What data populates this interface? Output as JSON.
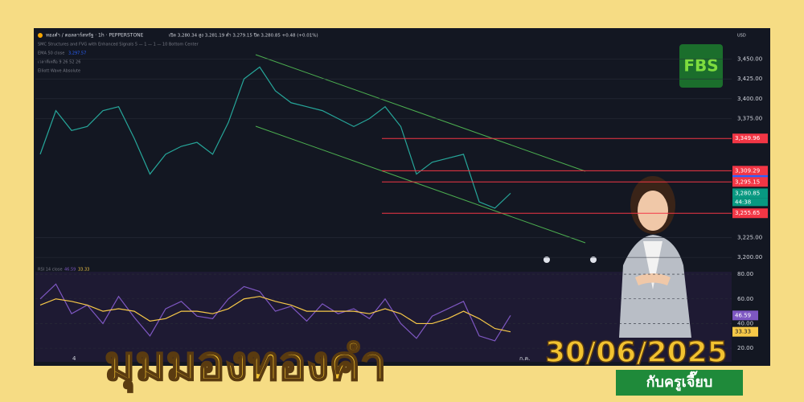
{
  "header": {
    "symbol": "ทองคำ / ดอลลาร์สหรัฐ · 1h · PEPPERSTONE",
    "ohlc": "เปิด 3,280.34 สูง 3,281.19 ต่ำ 3,279.15 ปิด 3,280.85 +0.48 (+0.01%)",
    "indicators": [
      "SMC Structures and FVG with Enhanced Signals 5 — 1 — 1 — 10 Bottom Center",
      "EMA 50 close",
      "เวลาที่เหลือ 9 26 52 26",
      "Elliott Wave Absolute"
    ],
    "currency": "USD",
    "time_labels": [
      "4",
      "ก.ค."
    ]
  },
  "brand": "FBS",
  "title": "มุมมองทองคำ",
  "date": "30/06/2025",
  "presenter": "กับครูเจี๊ยบ",
  "chart_data": [
    {
      "type": "line",
      "values": [
        3330,
        3385,
        3360,
        3365,
        3385,
        3390,
        3350,
        3305,
        3330,
        3340,
        3345,
        3330,
        3370,
        3425,
        3440,
        3410,
        3395,
        3390,
        3385,
        3375,
        3365,
        3375,
        3390,
        3365,
        3305,
        3320,
        3325,
        3330,
        3270,
        3262,
        3280.85
      ],
      "color": "#26a69a",
      "ylim": [
        3190,
        3487
      ],
      "yticks": [
        {
          "value": 3450,
          "label": "3,450.00"
        },
        {
          "value": 3425,
          "label": "3,425.00"
        },
        {
          "value": 3400,
          "label": "3,400.00"
        },
        {
          "value": 3375,
          "label": "3,375.00"
        },
        {
          "value": 3225,
          "label": "3,225.00"
        },
        {
          "value": 3200,
          "label": "3,200.00"
        }
      ],
      "levels": [
        {
          "value": 3349.96,
          "label": "3,349.96",
          "color": "#f23645"
        },
        {
          "value": 3309.29,
          "label": "3,309.29",
          "color": "#f23645"
        },
        {
          "value": 3297.57,
          "label": "3,297.57",
          "color": "#2962ff"
        },
        {
          "value": 3295.15,
          "label": "3,295.15",
          "color": "#f23645"
        },
        {
          "value": 3280.85,
          "label": "3,280.85",
          "color": "#089981"
        },
        {
          "value": 3255.65,
          "label": "3,255.65",
          "color": "#f23645"
        }
      ],
      "countdown": "44:38",
      "ema_label": "3,297.57"
    },
    {
      "type": "line",
      "title": "RSI 14 close",
      "series": [
        {
          "name": "RSI",
          "color": "#7e57c2",
          "values": [
            60,
            72,
            48,
            55,
            40,
            62,
            45,
            30,
            52,
            58,
            46,
            44,
            60,
            70,
            66,
            50,
            54,
            42,
            56,
            48,
            52,
            44,
            60,
            40,
            28,
            46,
            52,
            58,
            30,
            26,
            46.59
          ]
        },
        {
          "name": "MA",
          "color": "#f7c948",
          "values": [
            55,
            60,
            58,
            55,
            50,
            52,
            50,
            42,
            44,
            50,
            50,
            48,
            52,
            60,
            62,
            58,
            55,
            50,
            50,
            50,
            50,
            48,
            52,
            48,
            40,
            40,
            44,
            50,
            44,
            36,
            33.33
          ]
        }
      ],
      "ylim": [
        9,
        82
      ],
      "yticks": [
        {
          "value": 80,
          "label": "80.00"
        },
        {
          "value": 60,
          "label": "60.00"
        },
        {
          "value": 40,
          "label": "40.00"
        },
        {
          "value": 20,
          "label": "20.00"
        }
      ],
      "markers": [
        {
          "value": 46.59,
          "label": "46.59",
          "color": "#7e57c2"
        },
        {
          "value": 33.33,
          "label": "33.33",
          "color": "#f7c948"
        }
      ]
    }
  ]
}
